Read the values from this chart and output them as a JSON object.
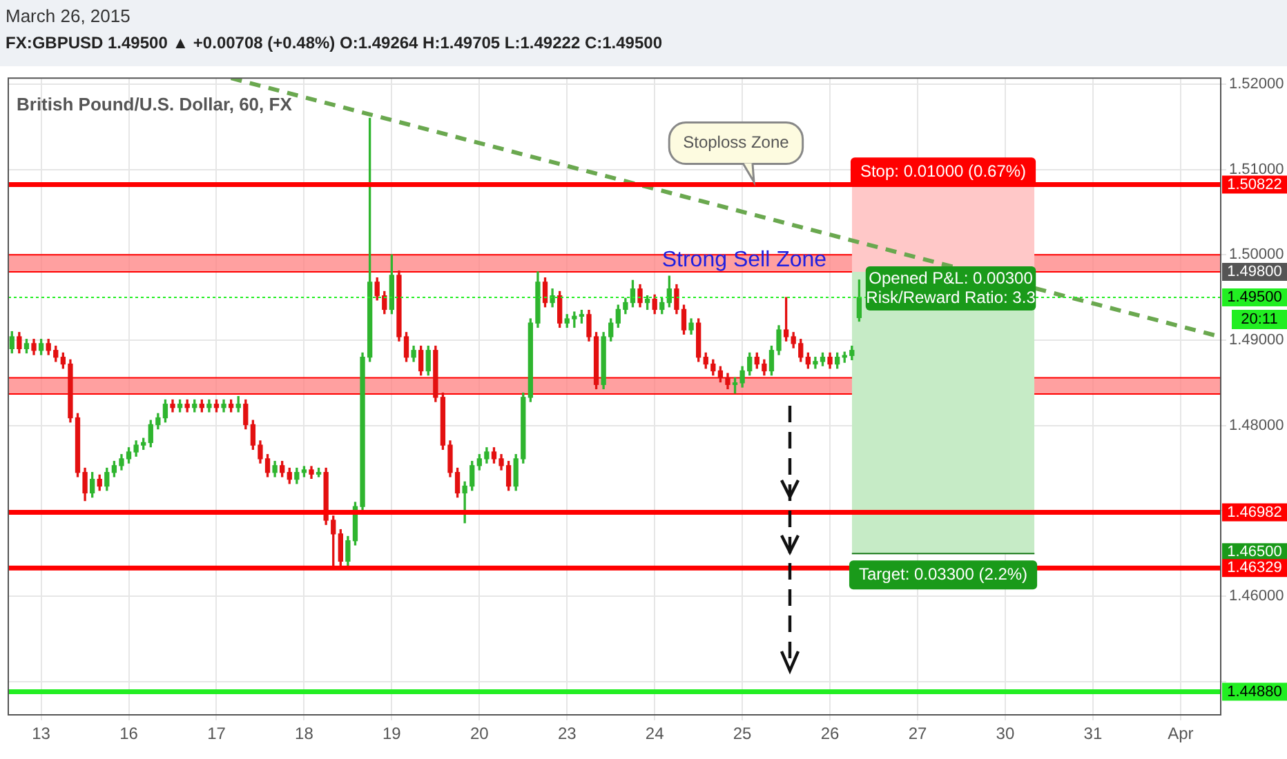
{
  "chart_data": {
    "type": "candlestick",
    "title": "March 26, 2015",
    "subtitle": "FX:GBPUSD 1.49500 ▲ +0.00708 (+0.48%) O:1.49264 H:1.49705 L:1.49222 C:1.49500",
    "categories": [
      null,
      null,
      null,
      null,
      "13",
      null,
      null,
      null,
      null,
      null,
      null,
      null,
      null,
      null,
      null,
      null,
      "16",
      null,
      null,
      null,
      null,
      null,
      null,
      null,
      null,
      null,
      null,
      null,
      "17",
      null,
      null,
      null,
      null,
      null,
      null,
      null,
      null,
      null,
      null,
      null,
      "18",
      null,
      null,
      null,
      null,
      null,
      null,
      null,
      null,
      null,
      null,
      null,
      "19",
      null,
      null,
      null,
      null,
      null,
      null,
      null,
      null,
      null,
      null,
      null,
      "20",
      null,
      null,
      null,
      null,
      null,
      null,
      null,
      null,
      null,
      null,
      null,
      "23",
      null,
      null,
      null,
      null,
      null,
      null,
      null,
      null,
      null,
      null,
      null,
      "24",
      null,
      null,
      null,
      null,
      null,
      null,
      null,
      null,
      null,
      null,
      null,
      "25",
      null,
      null,
      null,
      null,
      null,
      null,
      null,
      null,
      null,
      null,
      null,
      "26",
      null,
      null,
      null,
      null,
      null,
      null,
      null,
      null,
      null,
      null,
      null,
      "27",
      null,
      null,
      null,
      null,
      null,
      null,
      null,
      null,
      null,
      null,
      null,
      "30",
      null,
      null,
      null,
      null,
      null,
      null,
      null,
      null,
      null,
      null,
      null,
      "31",
      null,
      null,
      null,
      null,
      null,
      null,
      null,
      null,
      null,
      null,
      null,
      "Apr",
      null,
      null,
      null,
      null,
      null
    ],
    "ohlc": [
      [
        1.489,
        1.491,
        1.4885,
        1.4904
      ],
      [
        1.4904,
        1.4909,
        1.4885,
        1.489
      ],
      [
        1.489,
        1.4901,
        1.4885,
        1.4896
      ],
      [
        1.4896,
        1.4901,
        1.4883,
        1.4888
      ],
      [
        1.4888,
        1.4901,
        1.4883,
        1.4896
      ],
      [
        1.4896,
        1.4901,
        1.4883,
        1.4888
      ],
      [
        1.4888,
        1.4893,
        1.4875,
        1.488
      ],
      [
        1.488,
        1.4885,
        1.4867,
        1.4872
      ],
      [
        1.4872,
        1.4877,
        1.4804,
        1.4809
      ],
      [
        1.4809,
        1.4814,
        1.474,
        1.4745
      ],
      [
        1.4745,
        1.475,
        1.4712,
        1.4721
      ],
      [
        1.4721,
        1.4745,
        1.4716,
        1.4737
      ],
      [
        1.4737,
        1.4742,
        1.4724,
        1.4729
      ],
      [
        1.4729,
        1.475,
        1.4724,
        1.4745
      ],
      [
        1.4745,
        1.4758,
        1.474,
        1.4753
      ],
      [
        1.4753,
        1.4766,
        1.4748,
        1.4761
      ],
      [
        1.4761,
        1.4774,
        1.4756,
        1.4769
      ],
      [
        1.4769,
        1.4782,
        1.4764,
        1.4777
      ],
      [
        1.4777,
        1.4785,
        1.4772,
        1.478
      ],
      [
        1.478,
        1.4806,
        1.4775,
        1.4801
      ],
      [
        1.4801,
        1.4814,
        1.4796,
        1.4809
      ],
      [
        1.4809,
        1.483,
        1.4804,
        1.4825
      ],
      [
        1.4825,
        1.483,
        1.4816,
        1.4821
      ],
      [
        1.4821,
        1.483,
        1.4816,
        1.4825
      ],
      [
        1.4825,
        1.483,
        1.4816,
        1.4821
      ],
      [
        1.4821,
        1.483,
        1.4816,
        1.4825
      ],
      [
        1.4825,
        1.483,
        1.4816,
        1.4821
      ],
      [
        1.4821,
        1.483,
        1.4816,
        1.4825
      ],
      [
        1.4825,
        1.483,
        1.4816,
        1.4821
      ],
      [
        1.4821,
        1.483,
        1.4816,
        1.4825
      ],
      [
        1.4825,
        1.483,
        1.4816,
        1.4821
      ],
      [
        1.4821,
        1.4834,
        1.4816,
        1.4825
      ],
      [
        1.4825,
        1.483,
        1.4796,
        1.4801
      ],
      [
        1.4801,
        1.4806,
        1.4772,
        1.4777
      ],
      [
        1.4777,
        1.4782,
        1.4756,
        1.4761
      ],
      [
        1.4761,
        1.4766,
        1.474,
        1.4745
      ],
      [
        1.4745,
        1.4758,
        1.474,
        1.4753
      ],
      [
        1.4753,
        1.4758,
        1.474,
        1.4745
      ],
      [
        1.4745,
        1.475,
        1.4732,
        1.4737
      ],
      [
        1.4737,
        1.475,
        1.4732,
        1.4745
      ],
      [
        1.4745,
        1.4752,
        1.474,
        1.4748
      ],
      [
        1.4748,
        1.4752,
        1.4738,
        1.4743
      ],
      [
        1.4743,
        1.475,
        1.474,
        1.4745
      ],
      [
        1.4745,
        1.475,
        1.4684,
        1.4689
      ],
      [
        1.4689,
        1.4694,
        1.4633,
        1.4673
      ],
      [
        1.4673,
        1.4678,
        1.4636,
        1.4641
      ],
      [
        1.4641,
        1.467,
        1.4636,
        1.4665
      ],
      [
        1.4665,
        1.471,
        1.466,
        1.4705
      ],
      [
        1.4705,
        1.4885,
        1.47,
        1.488
      ],
      [
        1.488,
        1.516,
        1.4875,
        1.4968
      ],
      [
        1.4968,
        1.4973,
        1.4947,
        1.4952
      ],
      [
        1.4952,
        1.4957,
        1.4931,
        1.4936
      ],
      [
        1.4936,
        1.5,
        1.4931,
        1.4976
      ],
      [
        1.4976,
        1.4981,
        1.4899,
        1.4904
      ],
      [
        1.4904,
        1.4909,
        1.4875,
        1.488
      ],
      [
        1.488,
        1.4893,
        1.4875,
        1.4888
      ],
      [
        1.4888,
        1.4893,
        1.4859,
        1.4864
      ],
      [
        1.4864,
        1.4893,
        1.4859,
        1.4888
      ],
      [
        1.4888,
        1.4893,
        1.4828,
        1.4833
      ],
      [
        1.4833,
        1.4838,
        1.4772,
        1.4777
      ],
      [
        1.4777,
        1.4782,
        1.474,
        1.4745
      ],
      [
        1.4745,
        1.475,
        1.4716,
        1.4721
      ],
      [
        1.4721,
        1.4734,
        1.4686,
        1.4729
      ],
      [
        1.4729,
        1.4758,
        1.4724,
        1.4753
      ],
      [
        1.4753,
        1.4766,
        1.4748,
        1.4761
      ],
      [
        1.4761,
        1.4774,
        1.4756,
        1.4769
      ],
      [
        1.4769,
        1.4774,
        1.4756,
        1.4761
      ],
      [
        1.4761,
        1.4766,
        1.4748,
        1.4753
      ],
      [
        1.4753,
        1.4758,
        1.4724,
        1.4729
      ],
      [
        1.4729,
        1.4766,
        1.4724,
        1.4761
      ],
      [
        1.4761,
        1.4838,
        1.4756,
        1.4833
      ],
      [
        1.4833,
        1.4925,
        1.4828,
        1.492
      ],
      [
        1.492,
        1.498,
        1.4915,
        1.4968
      ],
      [
        1.4968,
        1.4973,
        1.4939,
        1.4944
      ],
      [
        1.4944,
        1.496,
        1.4939,
        1.4952
      ],
      [
        1.4952,
        1.4957,
        1.4915,
        1.492
      ],
      [
        1.492,
        1.493,
        1.4915,
        1.4925
      ],
      [
        1.4925,
        1.4933,
        1.4915,
        1.4928
      ],
      [
        1.4928,
        1.4935,
        1.492,
        1.493
      ],
      [
        1.493,
        1.4935,
        1.4899,
        1.4904
      ],
      [
        1.4904,
        1.4909,
        1.4843,
        1.4848
      ],
      [
        1.4848,
        1.4909,
        1.4843,
        1.4904
      ],
      [
        1.4904,
        1.4925,
        1.4899,
        1.492
      ],
      [
        1.492,
        1.4941,
        1.4915,
        1.4936
      ],
      [
        1.4936,
        1.4949,
        1.4931,
        1.4944
      ],
      [
        1.4944,
        1.497,
        1.4939,
        1.496
      ],
      [
        1.496,
        1.4965,
        1.4939,
        1.4944
      ],
      [
        1.4944,
        1.4952,
        1.4936,
        1.4948
      ],
      [
        1.4948,
        1.4953,
        1.4931,
        1.4936
      ],
      [
        1.4936,
        1.4949,
        1.4931,
        1.4944
      ],
      [
        1.4944,
        1.4975,
        1.4939,
        1.496
      ],
      [
        1.496,
        1.4965,
        1.4931,
        1.4936
      ],
      [
        1.4936,
        1.4941,
        1.4907,
        1.4912
      ],
      [
        1.4912,
        1.4925,
        1.4907,
        1.492
      ],
      [
        1.492,
        1.4925,
        1.4875,
        1.488
      ],
      [
        1.488,
        1.4885,
        1.4867,
        1.4872
      ],
      [
        1.4872,
        1.4877,
        1.4859,
        1.4864
      ],
      [
        1.4864,
        1.4869,
        1.4851,
        1.4856
      ],
      [
        1.4856,
        1.4861,
        1.4843,
        1.4848
      ],
      [
        1.4848,
        1.4856,
        1.4838,
        1.485
      ],
      [
        1.485,
        1.4869,
        1.4845,
        1.4864
      ],
      [
        1.4864,
        1.4885,
        1.4859,
        1.488
      ],
      [
        1.488,
        1.4885,
        1.4867,
        1.4872
      ],
      [
        1.4872,
        1.4877,
        1.4859,
        1.4864
      ],
      [
        1.4864,
        1.4893,
        1.4859,
        1.4888
      ],
      [
        1.4888,
        1.4917,
        1.4883,
        1.4912
      ],
      [
        1.4912,
        1.495,
        1.4899,
        1.4904
      ],
      [
        1.4904,
        1.4909,
        1.4891,
        1.4896
      ],
      [
        1.4896,
        1.4901,
        1.4875,
        1.488
      ],
      [
        1.488,
        1.4885,
        1.4867,
        1.4872
      ],
      [
        1.4872,
        1.488,
        1.4867,
        1.4875
      ],
      [
        1.4875,
        1.4885,
        1.487,
        1.488
      ],
      [
        1.488,
        1.4885,
        1.4867,
        1.4872
      ],
      [
        1.4872,
        1.4885,
        1.4867,
        1.488
      ],
      [
        1.488,
        1.4886,
        1.4874,
        1.4882
      ],
      [
        1.4882,
        1.4893,
        1.4877,
        1.4888
      ],
      [
        1.49264,
        1.49705,
        1.49222,
        1.495
      ],
      null,
      null,
      null,
      null,
      null,
      null,
      null,
      null,
      null,
      null,
      null,
      null,
      null,
      null,
      null,
      null,
      null,
      null,
      null,
      null,
      null,
      null,
      null,
      null,
      null,
      null,
      null,
      null,
      null,
      null,
      null,
      null,
      null,
      null,
      null,
      null,
      null,
      null,
      null,
      null,
      null,
      null,
      null,
      null,
      null,
      null,
      null,
      null,
      null
    ],
    "colors": [
      "#2fb52f",
      "#e31010",
      "#2fb52f",
      "#e31010",
      "#2fb52f",
      "#e31010",
      "#e31010",
      "#e31010",
      "#e31010",
      "#e31010",
      "#e31010",
      "#2fb52f",
      "#e31010",
      "#2fb52f",
      "#2fb52f",
      "#2fb52f",
      "#2fb52f",
      "#2fb52f",
      "#2fb52f",
      "#2fb52f",
      "#2fb52f",
      "#2fb52f",
      "#e31010",
      "#2fb52f",
      "#e31010",
      "#2fb52f",
      "#e31010",
      "#2fb52f",
      "#e31010",
      "#2fb52f",
      "#e31010",
      "#2fb52f",
      "#e31010",
      "#e31010",
      "#e31010",
      "#e31010",
      "#2fb52f",
      "#e31010",
      "#e31010",
      "#2fb52f",
      "#2fb52f",
      "#e31010",
      "#2fb52f",
      "#e31010",
      "#e31010",
      "#e31010",
      "#2fb52f",
      "#2fb52f",
      "#2fb52f",
      "#2fb52f",
      "#e31010",
      "#e31010",
      "#2fb52f",
      "#e31010",
      "#e31010",
      "#2fb52f",
      "#e31010",
      "#2fb52f",
      "#e31010",
      "#e31010",
      "#e31010",
      "#e31010",
      "#2fb52f",
      "#2fb52f",
      "#2fb52f",
      "#2fb52f",
      "#e31010",
      "#e31010",
      "#e31010",
      "#2fb52f",
      "#2fb52f",
      "#2fb52f",
      "#2fb52f",
      "#e31010",
      "#2fb52f",
      "#e31010",
      "#2fb52f",
      "#2fb52f",
      "#2fb52f",
      "#e31010",
      "#e31010",
      "#2fb52f",
      "#2fb52f",
      "#2fb52f",
      "#2fb52f",
      "#2fb52f",
      "#e31010",
      "#2fb52f",
      "#e31010",
      "#2fb52f",
      "#2fb52f",
      "#e31010",
      "#e31010",
      "#2fb52f",
      "#e31010",
      "#e31010",
      "#e31010",
      "#e31010",
      "#e31010",
      "#2fb52f",
      "#2fb52f",
      "#2fb52f",
      "#e31010",
      "#e31010",
      "#2fb52f",
      "#2fb52f",
      "#e31010",
      "#e31010",
      "#e31010",
      "#e31010",
      "#2fb52f",
      "#2fb52f",
      "#e31010",
      "#2fb52f",
      "#2fb52f",
      "#2fb52f",
      "#2fb52f",
      null,
      null,
      null,
      null,
      null,
      null,
      null,
      null,
      null,
      null,
      null,
      null,
      null,
      null,
      null,
      null,
      null,
      null,
      null,
      null,
      null,
      null,
      null,
      null,
      null,
      null,
      null,
      null,
      null,
      null,
      null,
      null,
      null,
      null,
      null,
      null,
      null,
      null,
      null,
      null,
      null,
      null,
      null,
      null,
      null,
      null,
      null,
      null,
      null
    ],
    "series": [
      {
        "type": "area",
        "color": "#ffc8c8",
        "values": [
          null,
          null,
          null,
          null,
          null,
          null,
          null,
          null,
          null,
          null,
          null,
          null,
          null,
          null,
          null,
          null,
          null,
          null,
          null,
          null,
          null,
          null,
          null,
          null,
          null,
          null,
          null,
          null,
          null,
          null,
          null,
          null,
          null,
          null,
          null,
          null,
          null,
          null,
          null,
          null,
          null,
          null,
          null,
          null,
          null,
          null,
          null,
          null,
          null,
          null,
          null,
          null,
          null,
          null,
          null,
          null,
          null,
          null,
          null,
          null,
          null,
          null,
          null,
          null,
          null,
          null,
          null,
          null,
          null,
          null,
          null,
          null,
          null,
          null,
          null,
          null,
          null,
          null,
          null,
          null,
          null,
          null,
          null,
          null,
          null,
          null,
          null,
          null,
          null,
          null,
          null,
          null,
          null,
          null,
          null,
          null,
          null,
          null,
          null,
          null,
          null,
          null,
          null,
          null,
          null,
          null,
          null,
          null,
          null,
          null,
          null,
          null,
          null,
          null,
          null,
          1.508,
          null,
          null,
          null,
          null,
          null,
          null,
          null,
          null,
          null,
          null,
          null,
          null,
          null,
          null,
          null,
          null,
          null,
          null,
          null,
          null,
          null,
          null,
          null,
          null,
          1.508,
          null,
          null,
          null,
          null,
          null,
          null,
          null,
          null,
          null,
          null,
          null,
          null,
          null,
          null,
          null,
          null,
          null,
          null,
          null,
          null,
          null,
          null,
          null,
          null,
          null
        ]
      },
      {
        "type": "area",
        "color": "#c6ebc6",
        "values": [
          null,
          null,
          null,
          null,
          null,
          null,
          null,
          null,
          null,
          null,
          null,
          null,
          null,
          null,
          null,
          null,
          null,
          null,
          null,
          null,
          null,
          null,
          null,
          null,
          null,
          null,
          null,
          null,
          null,
          null,
          null,
          null,
          null,
          null,
          null,
          null,
          null,
          null,
          null,
          null,
          null,
          null,
          null,
          null,
          null,
          null,
          null,
          null,
          null,
          null,
          null,
          null,
          null,
          null,
          null,
          null,
          null,
          null,
          null,
          null,
          null,
          null,
          null,
          null,
          null,
          null,
          null,
          null,
          null,
          null,
          null,
          null,
          null,
          null,
          null,
          null,
          null,
          null,
          null,
          null,
          null,
          null,
          null,
          null,
          null,
          null,
          null,
          null,
          null,
          null,
          null,
          null,
          null,
          null,
          null,
          null,
          null,
          null,
          null,
          null,
          null,
          null,
          null,
          null,
          null,
          null,
          null,
          null,
          null,
          null,
          null,
          null,
          null,
          null,
          null,
          1.498,
          null,
          null,
          null,
          null,
          null,
          null,
          null,
          null,
          null,
          null,
          null,
          null,
          null,
          null,
          null,
          null,
          null,
          null,
          null,
          null,
          null,
          null,
          null,
          null,
          1.498,
          null,
          null,
          null,
          null,
          null,
          null,
          null,
          null,
          null,
          null,
          null,
          null,
          null,
          null,
          null,
          null,
          null,
          null,
          null,
          null,
          null,
          null,
          null,
          null,
          null
        ]
      },
      {
        "type": "line",
        "color": "#1a7a1a",
        "line_style": "solid",
        "values": [
          null,
          null,
          null,
          null,
          null,
          null,
          null,
          null,
          null,
          null,
          null,
          null,
          null,
          null,
          null,
          null,
          null,
          null,
          null,
          null,
          null,
          null,
          null,
          null,
          null,
          null,
          null,
          null,
          null,
          null,
          null,
          null,
          null,
          null,
          null,
          null,
          null,
          null,
          null,
          null,
          null,
          null,
          null,
          null,
          null,
          null,
          null,
          null,
          null,
          null,
          null,
          null,
          null,
          null,
          null,
          null,
          null,
          null,
          null,
          null,
          null,
          null,
          null,
          null,
          null,
          null,
          null,
          null,
          null,
          null,
          null,
          null,
          null,
          null,
          null,
          null,
          null,
          null,
          null,
          null,
          null,
          null,
          null,
          null,
          null,
          null,
          null,
          null,
          null,
          null,
          null,
          null,
          null,
          null,
          null,
          null,
          null,
          null,
          null,
          null,
          null,
          null,
          null,
          null,
          null,
          null,
          null,
          null,
          null,
          null,
          null,
          null,
          null,
          null,
          null,
          1.465,
          null,
          null,
          null,
          null,
          null,
          null,
          null,
          null,
          null,
          null,
          null,
          null,
          null,
          null,
          null,
          null,
          null,
          null,
          null,
          null,
          null,
          null,
          null,
          null,
          1.465,
          null,
          null,
          null,
          null,
          null,
          null,
          null,
          null,
          null,
          null,
          null,
          null,
          null,
          null,
          null,
          null,
          null,
          null,
          null,
          null,
          null,
          null,
          null,
          null,
          null
        ]
      },
      {
        "type": "line",
        "color": "#6aa84f",
        "line_style": "dashed",
        "values": [
          null,
          null,
          null,
          null,
          null,
          null,
          null,
          null,
          null,
          null,
          null,
          null,
          null,
          null,
          null,
          null,
          null,
          null,
          null,
          null,
          null,
          null,
          null,
          null,
          null,
          null,
          null,
          null,
          null,
          null,
          1.5207,
          null,
          null,
          null,
          null,
          null,
          null,
          null,
          null,
          null,
          null,
          null,
          null,
          null,
          null,
          null,
          null,
          null,
          null,
          null,
          null,
          null,
          null,
          null,
          null,
          null,
          null,
          null,
          null,
          null,
          null,
          null,
          null,
          null,
          null,
          null,
          null,
          null,
          null,
          null,
          null,
          null,
          null,
          null,
          null,
          null,
          null,
          null,
          null,
          null,
          null,
          null,
          null,
          null,
          null,
          null,
          null,
          null,
          null,
          null,
          null,
          null,
          null,
          null,
          null,
          null,
          null,
          null,
          null,
          null,
          null,
          null,
          null,
          null,
          null,
          null,
          null,
          null,
          null,
          null,
          null,
          null,
          null,
          null,
          null,
          null,
          null,
          null,
          null,
          null,
          null,
          null,
          null,
          null,
          null,
          null,
          null,
          null,
          null,
          null,
          null,
          null,
          null,
          null,
          null,
          null,
          null,
          null,
          null,
          null,
          null,
          null,
          null,
          null,
          null,
          null,
          null,
          null,
          null,
          null,
          null,
          null,
          null,
          null,
          null,
          null,
          null,
          null,
          null,
          null,
          null,
          null,
          null,
          null,
          null,
          1.4905
        ]
      }
    ],
    "ylim": [
      1.4461,
      1.5207
    ],
    "yticks": [
      {
        "value": 1.45,
        "label": null
      },
      {
        "value": 1.46,
        "label": "1.46000"
      },
      {
        "value": 1.47,
        "label": null
      },
      {
        "value": 1.48,
        "label": "1.48000"
      },
      {
        "value": 1.49,
        "label": "1.49000"
      },
      {
        "value": 1.5,
        "label": "1.50000"
      },
      {
        "value": 1.51,
        "label": "1.51000"
      },
      {
        "value": 1.52,
        "label": "1.52000"
      }
    ],
    "grid": true,
    "legend": false,
    "bands": [
      {
        "axis": "y",
        "from": 1.498,
        "to": 1.5,
        "label": "Strong Sell Zone",
        "color": "#ff8080"
      },
      {
        "axis": "y",
        "from": 1.4837,
        "to": 1.4856,
        "label": null,
        "color": "#ff8080"
      }
    ],
    "ref_lines": [
      {
        "axis": "y",
        "value": 1.50822,
        "label": "1.50822",
        "color": "#ff0000",
        "line_style": "solid"
      },
      {
        "axis": "y",
        "value": 1.495,
        "label": "1.49500",
        "color": "#22ee22",
        "line_style": "dotted"
      },
      {
        "axis": "y",
        "value": 1.46982,
        "label": "1.46982",
        "color": "#ff0000",
        "line_style": "solid"
      },
      {
        "axis": "y",
        "value": 1.46329,
        "label": "1.46329",
        "color": "#ff0000",
        "line_style": "solid"
      },
      {
        "axis": "y",
        "value": 1.4488,
        "label": "1.44880",
        "color": "#22ee22",
        "line_style": "solid"
      }
    ],
    "annotations": [
      "British Pound/U.S. Dollar, 60, FX",
      "Stoploss Zone",
      "Stop: 0.01000 (0.67%)",
      "Opened P&L: 0.00300",
      "Risk/Reward Ratio: 3.3",
      "Target: 0.03300 (2.2%)",
      "1.49800",
      "1.46500",
      "20:11"
    ]
  }
}
